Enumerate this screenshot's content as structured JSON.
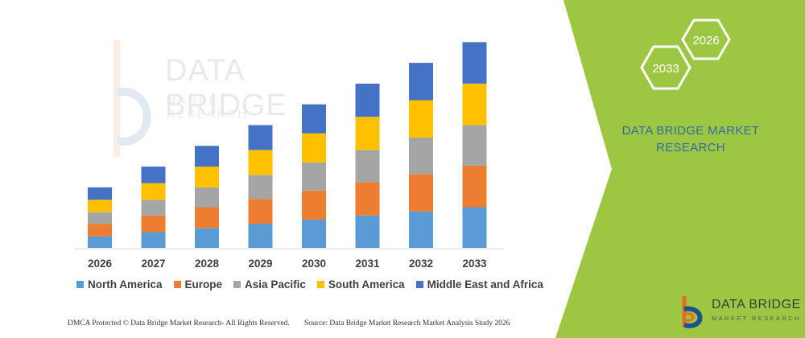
{
  "chart_data": {
    "type": "bar",
    "stacked": true,
    "categories": [
      "2026",
      "2027",
      "2028",
      "2029",
      "2030",
      "2031",
      "2032",
      "2033"
    ],
    "series": [
      {
        "name": "North America",
        "color": "#5b9bd5",
        "values": [
          14,
          19,
          24,
          29,
          34,
          39,
          44,
          49
        ]
      },
      {
        "name": "Europe",
        "color": "#ed7d31",
        "values": [
          15,
          20,
          25,
          30,
          35,
          40,
          45,
          50
        ]
      },
      {
        "name": "Asia Pacific",
        "color": "#a5a5a5",
        "values": [
          14,
          19,
          24,
          29,
          34,
          39,
          44,
          49
        ]
      },
      {
        "name": "South America",
        "color": "#ffc000",
        "values": [
          15,
          20,
          25,
          30,
          35,
          40,
          45,
          50
        ]
      },
      {
        "name": "Middle East and Africa",
        "color": "#4472c4",
        "values": [
          15,
          20,
          25,
          30,
          35,
          40,
          45,
          50
        ]
      }
    ],
    "title": "",
    "xlabel": "",
    "ylabel": "",
    "ylim": [
      0,
      260
    ],
    "grid": false,
    "legend_position": "bottom"
  },
  "footer": {
    "copyright": "DMCA Protected © Data Bridge Market Research- All Rights Reserved.",
    "source": "Source: Data Bridge Market Research Market Analysis Study 2026"
  },
  "side_panel": {
    "hex_year_start": "2026",
    "hex_year_end": "2033",
    "brand_line1": "DATA BRIDGE MARKET",
    "brand_line2": "RESEARCH",
    "panel_color": "#9dc642",
    "brand_color": "#2e6da4"
  },
  "logo": {
    "name": "DATA BRIDGE",
    "tagline": "MARKET RESEARCH"
  },
  "watermark": {
    "name": "DATA BRIDGE",
    "tagline": "MARKET RESEARCH"
  }
}
